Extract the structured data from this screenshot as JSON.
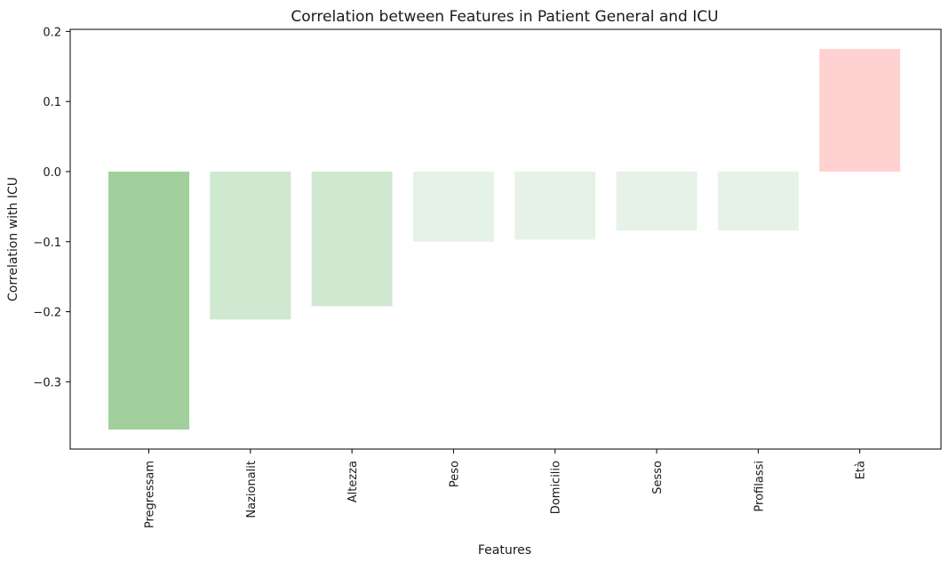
{
  "chart_data": {
    "type": "bar",
    "title": "Correlation between Features in Patient General and ICU",
    "xlabel": "Features",
    "ylabel": "Correlation with ICU",
    "categories": [
      "Pregressam",
      "Nazionalit",
      "Altezza",
      "Peso",
      "Domicilio",
      "Sesso",
      "Profilassi",
      "Età"
    ],
    "values": [
      -0.368,
      -0.211,
      -0.192,
      -0.1,
      -0.097,
      -0.084,
      -0.084,
      0.175
    ],
    "colors": [
      "#a1d09c",
      "#cfe8d0",
      "#cfe8d0",
      "#e6f2e5",
      "#e6f2e5",
      "#e6f2e5",
      "#e6f2e5",
      "#ffd1d1"
    ],
    "ylim": [
      -0.396,
      0.203
    ],
    "yticks": [
      0.2,
      0.1,
      0.0,
      -0.1,
      -0.2,
      -0.3
    ],
    "ytick_labels": [
      "0.2",
      "0.1",
      "0.0",
      "−0.1",
      "−0.2",
      "−0.3"
    ],
    "grid": false,
    "legend": "none"
  }
}
